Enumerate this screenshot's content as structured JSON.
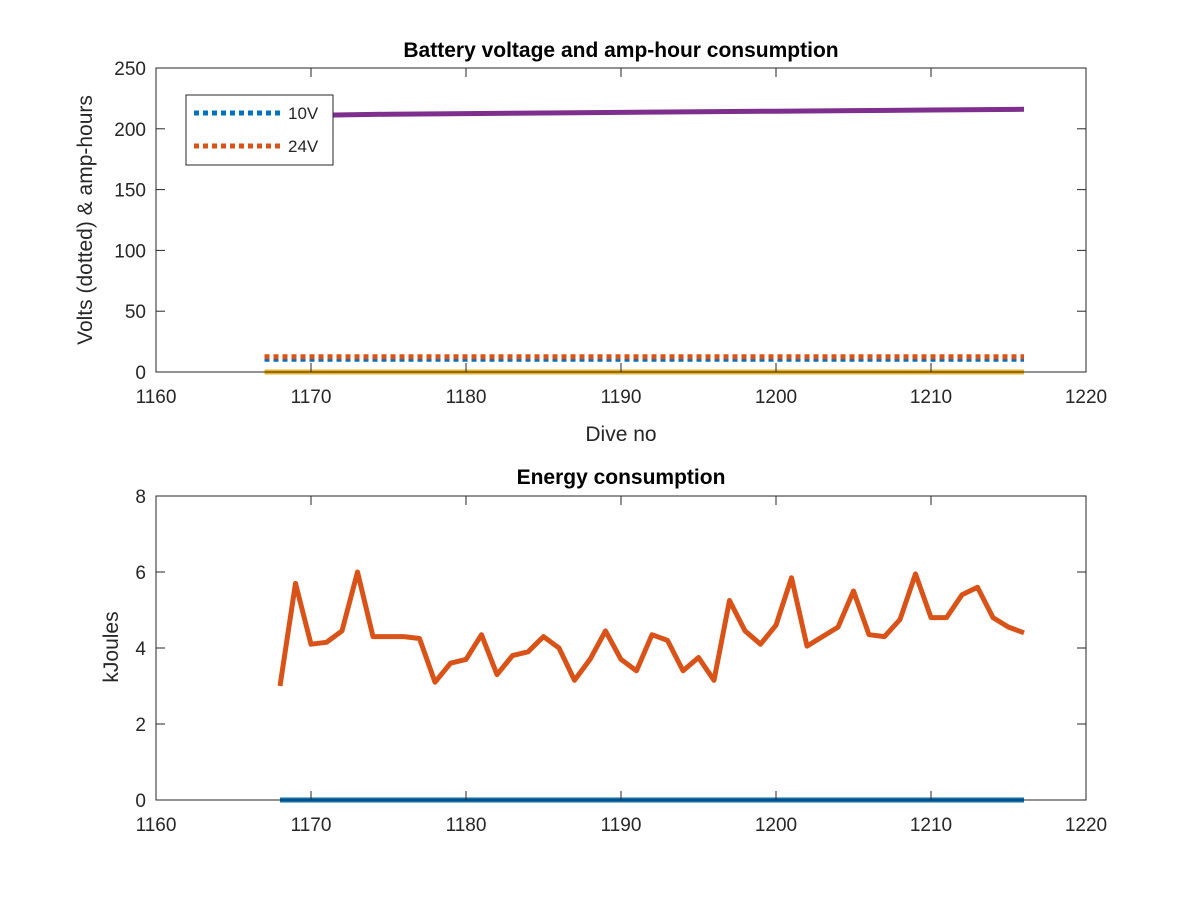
{
  "chart_data": [
    {
      "type": "line",
      "title": "Battery voltage and amp-hour consumption",
      "xlabel": "Dive no",
      "ylabel": "Volts (dotted) & amp-hours",
      "xlim": [
        1160,
        1220
      ],
      "ylim": [
        0,
        250
      ],
      "xticks": [
        "1160",
        "1170",
        "1180",
        "1190",
        "1200",
        "1210",
        "1220"
      ],
      "yticks": [
        "0",
        "50",
        "100",
        "150",
        "200",
        "250"
      ],
      "grid": false,
      "legend": {
        "placement": "top-left",
        "entries": [
          "10V",
          "24V"
        ]
      },
      "series": [
        {
          "name": "10V",
          "style": "dotted",
          "color": "#0072BD",
          "x": [
            1167,
            1216
          ],
          "y": [
            10.5,
            10.5
          ]
        },
        {
          "name": "24V",
          "style": "dotted",
          "color": "#D95319",
          "x": [
            1167,
            1216
          ],
          "y": [
            12.5,
            12.5
          ]
        },
        {
          "style": "solid",
          "color": "#EDB120",
          "x": [
            1167,
            1216
          ],
          "y": [
            0,
            0
          ]
        },
        {
          "style": "solid",
          "color": "#7E2F8E",
          "x": [
            1170,
            1175,
            1180,
            1185,
            1190,
            1195,
            1200,
            1205,
            1210,
            1216
          ],
          "y": [
            211,
            212,
            212.5,
            213,
            213.5,
            214,
            214.5,
            215,
            215.5,
            216
          ]
        }
      ]
    },
    {
      "type": "line",
      "title": "Energy consumption",
      "xlabel": "",
      "ylabel": "kJoules",
      "xlim": [
        1160,
        1220
      ],
      "ylim": [
        0,
        8
      ],
      "xticks": [
        "1160",
        "1170",
        "1180",
        "1190",
        "1200",
        "1210",
        "1220"
      ],
      "yticks": [
        "0",
        "2",
        "4",
        "6",
        "8"
      ],
      "grid": false,
      "series": [
        {
          "style": "solid",
          "color": "#0072BD",
          "x": [
            1168,
            1216
          ],
          "y": [
            0,
            0
          ]
        },
        {
          "style": "solid",
          "color": "#D95319",
          "x": [
            1168,
            1169,
            1170,
            1171,
            1172,
            1173,
            1174,
            1175,
            1176,
            1177,
            1178,
            1179,
            1180,
            1181,
            1182,
            1183,
            1184,
            1185,
            1186,
            1187,
            1188,
            1189,
            1190,
            1191,
            1192,
            1193,
            1194,
            1195,
            1196,
            1197,
            1198,
            1199,
            1200,
            1201,
            1202,
            1203,
            1204,
            1205,
            1206,
            1207,
            1208,
            1209,
            1210,
            1211,
            1212,
            1213,
            1214,
            1215,
            1216
          ],
          "y": [
            3.0,
            5.7,
            4.1,
            4.15,
            4.45,
            6.0,
            4.3,
            4.3,
            4.3,
            4.25,
            3.1,
            3.6,
            3.7,
            4.35,
            3.3,
            3.8,
            3.9,
            4.3,
            4.0,
            3.15,
            3.7,
            4.45,
            3.7,
            3.4,
            4.35,
            4.2,
            3.4,
            3.75,
            3.15,
            5.25,
            4.45,
            4.1,
            4.6,
            5.85,
            4.05,
            4.3,
            4.55,
            5.5,
            4.35,
            4.3,
            4.75,
            5.95,
            4.8,
            4.8,
            5.4,
            5.6,
            4.8,
            4.55,
            4.4
          ]
        }
      ]
    }
  ]
}
